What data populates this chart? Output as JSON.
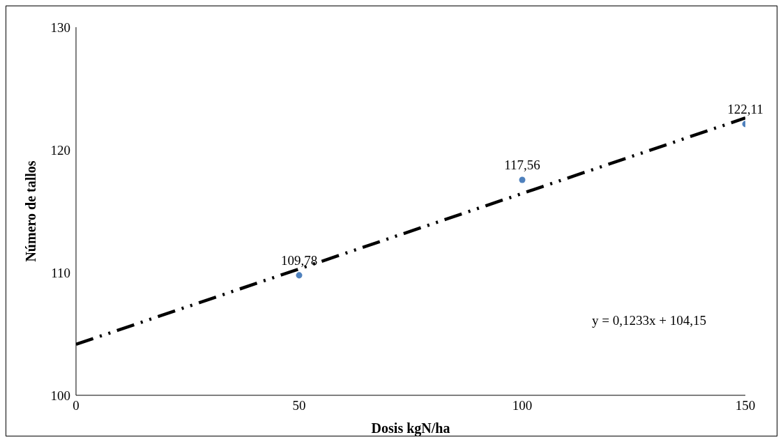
{
  "chart_data": {
    "type": "scatter",
    "xlabel": "Dosis kgN/ha",
    "ylabel": "Número de tallos",
    "x": [
      50,
      100,
      150
    ],
    "xlim": [
      0,
      150
    ],
    "xticks": [
      0,
      50,
      100,
      150
    ],
    "ylim": [
      100,
      130
    ],
    "yticks": [
      100,
      110,
      120,
      130
    ],
    "marker": "circle",
    "series": [
      {
        "color": "#4f81bd",
        "values": [
          109.78,
          117.56,
          122.11
        ],
        "value_labels": [
          "109,78",
          "117,56",
          "122,11"
        ]
      },
      {
        "type": "line",
        "x": [
          0,
          150
        ],
        "values": [
          104.15,
          122.6
        ],
        "color": "#000000",
        "line_style": "dashed",
        "marker": "none"
      }
    ],
    "annotations": [
      "y = 0,1233x + 104,15"
    ]
  }
}
